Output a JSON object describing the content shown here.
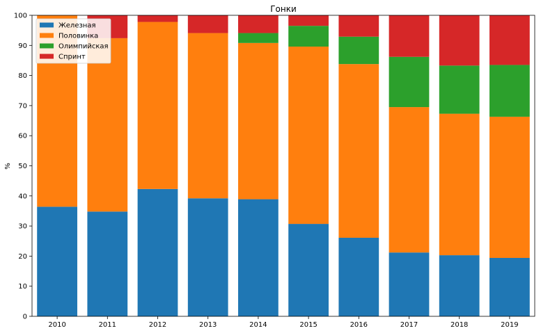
{
  "chart_data": {
    "type": "bar",
    "stacked": true,
    "title": "Гонки",
    "xlabel": "",
    "ylabel": "%",
    "categories": [
      "2010",
      "2011",
      "2012",
      "2013",
      "2014",
      "2015",
      "2016",
      "2017",
      "2018",
      "2019"
    ],
    "ylim": [
      0,
      100
    ],
    "yticks": [
      0,
      10,
      20,
      30,
      40,
      50,
      60,
      70,
      80,
      90,
      100
    ],
    "grid": false,
    "legend_position": "top-left",
    "series": [
      {
        "name": "Железная",
        "color": "#1f77b4",
        "values": [
          36.4,
          34.8,
          42.3,
          39.2,
          38.9,
          30.7,
          26.1,
          21.2,
          20.3,
          19.4
        ]
      },
      {
        "name": "Половинка",
        "color": "#ff7f0e",
        "values": [
          63.6,
          57.6,
          55.5,
          54.9,
          51.9,
          58.9,
          57.7,
          48.3,
          47.0,
          46.9
        ]
      },
      {
        "name": "Олимпийская",
        "color": "#2ca02c",
        "values": [
          0,
          0,
          0,
          0,
          3.3,
          6.9,
          9.1,
          16.7,
          16.0,
          17.2
        ]
      },
      {
        "name": "Спринт",
        "color": "#d62728",
        "values": [
          0,
          7.6,
          2.2,
          5.9,
          5.9,
          3.5,
          7.1,
          13.8,
          16.7,
          16.5
        ]
      }
    ]
  }
}
